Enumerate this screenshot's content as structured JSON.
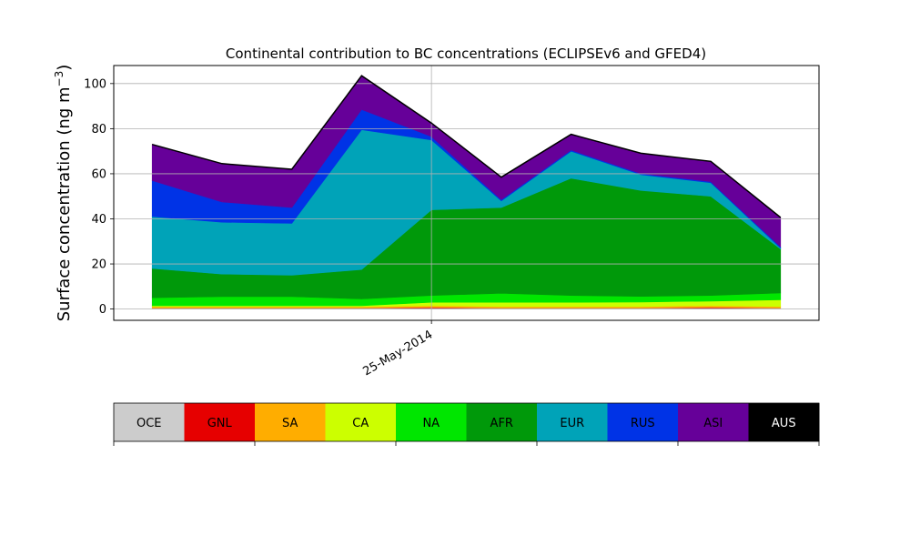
{
  "chart_data": {
    "type": "area",
    "stacked": true,
    "title": "Continental contribution to BC concentrations (ECLIPSEv6 and GFED4)",
    "ylabel": "Surface concentration (ng m",
    "ylabel_exponent": "−3",
    "ylabel_suffix": ")",
    "ylim": [
      -5,
      108
    ],
    "xlim": [
      -0.55,
      9.55
    ],
    "yticks": [
      0,
      20,
      40,
      60,
      80,
      100
    ],
    "yticklabels": [
      "0",
      "20",
      "40",
      "60",
      "80",
      "100"
    ],
    "xticks": [
      {
        "x": 4.0,
        "label": "25-May-2014"
      }
    ],
    "grid": true,
    "x": [
      0,
      1,
      2,
      3,
      4,
      5,
      6,
      7,
      8,
      9
    ],
    "series": [
      {
        "name": "OCE",
        "color": "#cccccc",
        "values": [
          0.5,
          0.5,
          0.5,
          0.5,
          0.5,
          0.5,
          0.5,
          0.5,
          0.5,
          0.5
        ]
      },
      {
        "name": "GNL",
        "color": "#e60000",
        "values": [
          0.0,
          0.0,
          0.0,
          0.0,
          0.3,
          0.0,
          0.0,
          0.0,
          0.3,
          0.0
        ]
      },
      {
        "name": "SA",
        "color": "#ffad00",
        "values": [
          0.5,
          0.5,
          0.5,
          0.5,
          0.7,
          0.6,
          0.6,
          0.6,
          0.7,
          0.6
        ]
      },
      {
        "name": "CA",
        "color": "#ccff00",
        "values": [
          0.5,
          0.5,
          0.5,
          0.5,
          1.5,
          1.9,
          1.9,
          2.0,
          2.0,
          3.0
        ]
      },
      {
        "name": "NA",
        "color": "#00e600",
        "values": [
          3.5,
          4.0,
          4.0,
          3.0,
          3.0,
          4.0,
          3.0,
          2.5,
          2.5,
          3.0
        ]
      },
      {
        "name": "AFR",
        "color": "#00990a",
        "values": [
          13.0,
          10.0,
          9.5,
          13.0,
          38.0,
          38.0,
          52.0,
          47.0,
          44.0,
          19.5
        ]
      },
      {
        "name": "EUR",
        "color": "#00a3b8",
        "values": [
          23.0,
          23.0,
          23.0,
          62.0,
          31.0,
          3.0,
          12.0,
          7.0,
          6.0,
          0.5
        ]
      },
      {
        "name": "RUS",
        "color": "#0033e6",
        "values": [
          16.0,
          9.0,
          7.0,
          9.0,
          1.5,
          0.5,
          0.5,
          0.5,
          0.5,
          0.5
        ]
      },
      {
        "name": "ASI",
        "color": "#660099",
        "values": [
          16.0,
          17.0,
          17.0,
          15.0,
          6.0,
          10.0,
          7.0,
          9.0,
          9.0,
          13.0
        ]
      },
      {
        "name": "AUS",
        "color": "#000000",
        "values": [
          0.0,
          0.0,
          0.0,
          0.0,
          0.0,
          0.0,
          0.0,
          0.0,
          0.0,
          0.0
        ]
      }
    ]
  },
  "legend": {
    "items": [
      {
        "label": "OCE",
        "color": "#cccccc",
        "text_color": "#000000"
      },
      {
        "label": "GNL",
        "color": "#e60000",
        "text_color": "#000000"
      },
      {
        "label": "SA",
        "color": "#ffad00",
        "text_color": "#000000"
      },
      {
        "label": "CA",
        "color": "#ccff00",
        "text_color": "#000000"
      },
      {
        "label": "NA",
        "color": "#00e600",
        "text_color": "#000000"
      },
      {
        "label": "AFR",
        "color": "#00990a",
        "text_color": "#000000"
      },
      {
        "label": "EUR",
        "color": "#00a3b8",
        "text_color": "#000000"
      },
      {
        "label": "RUS",
        "color": "#0033e6",
        "text_color": "#000000"
      },
      {
        "label": "ASI",
        "color": "#660099",
        "text_color": "#000000"
      },
      {
        "label": "AUS",
        "color": "#000000",
        "text_color": "#ffffff"
      }
    ]
  }
}
